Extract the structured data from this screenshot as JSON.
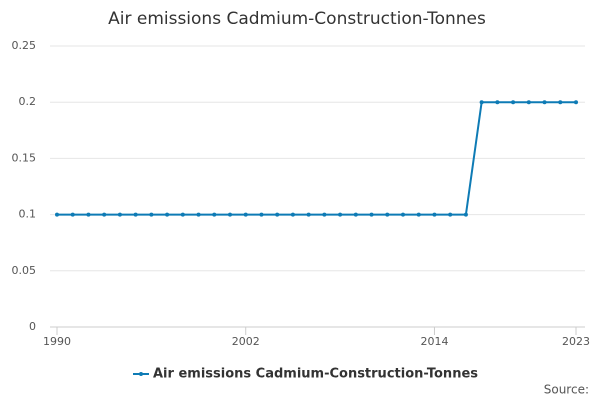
{
  "chart_data": {
    "type": "line",
    "title": "Air emissions Cadmium-Construction-Tonnes",
    "x": [
      1990,
      1991,
      1992,
      1993,
      1994,
      1995,
      1996,
      1997,
      1998,
      1999,
      2000,
      2001,
      2002,
      2003,
      2004,
      2005,
      2006,
      2007,
      2008,
      2009,
      2010,
      2011,
      2012,
      2013,
      2014,
      2015,
      2016,
      2017,
      2018,
      2019,
      2020,
      2021,
      2022,
      2023
    ],
    "series": [
      {
        "name": "Air emissions Cadmium-Construction-Tonnes",
        "color": "#0e7bb5",
        "values": [
          0.1,
          0.1,
          0.1,
          0.1,
          0.1,
          0.1,
          0.1,
          0.1,
          0.1,
          0.1,
          0.1,
          0.1,
          0.1,
          0.1,
          0.1,
          0.1,
          0.1,
          0.1,
          0.1,
          0.1,
          0.1,
          0.1,
          0.1,
          0.1,
          0.1,
          0.1,
          0.1,
          0.2,
          0.2,
          0.2,
          0.2,
          0.2,
          0.2,
          0.2
        ]
      }
    ],
    "xlim": [
      1990,
      2023
    ],
    "xticks": [
      1990,
      2002,
      2014,
      2023
    ],
    "ylim": [
      0,
      0.25
    ],
    "yticks": [
      0,
      0.05,
      0.1,
      0.15,
      0.2,
      0.25
    ],
    "grid": true,
    "legend": "bottom",
    "source": "Source:"
  }
}
